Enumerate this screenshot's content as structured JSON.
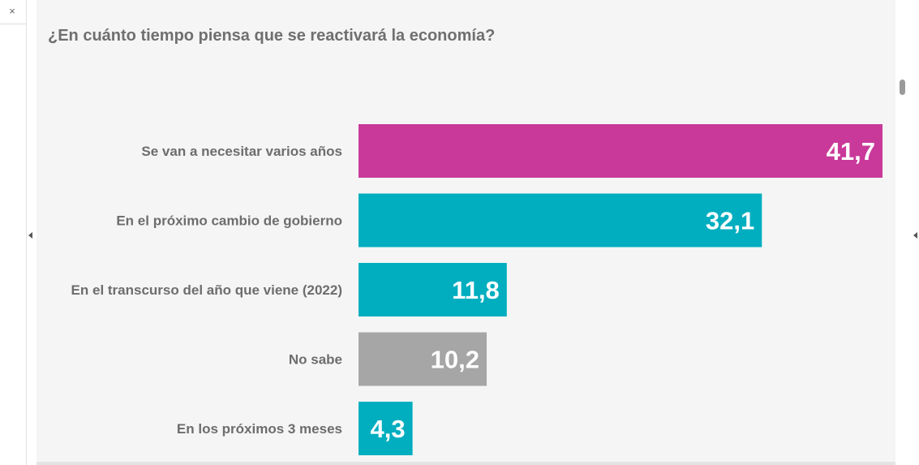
{
  "window": {
    "close_glyph": "×"
  },
  "title": "¿En cuánto tiempo piensa que se reactivará la economía?",
  "colors": {
    "magenta": "#c9399a",
    "teal": "#00aec0",
    "gray": "#a6a6a6"
  },
  "chart_data": {
    "type": "bar",
    "orientation": "horizontal",
    "title": "¿En cuánto tiempo piensa que se reactivará la economía?",
    "categories": [
      "Se van a necesitar varios años",
      "En el próximo cambio de gobierno",
      "En el transcurso del año que viene (2022)",
      "No sabe",
      "En los próximos 3 meses"
    ],
    "values": [
      41.7,
      32.1,
      11.8,
      10.2,
      4.3
    ],
    "value_labels": [
      "41,7",
      "32,1",
      "11,8",
      "10,2",
      "4,3"
    ],
    "bar_colors": [
      "#c9399a",
      "#00aec0",
      "#00aec0",
      "#a6a6a6",
      "#00aec0"
    ],
    "xlim": [
      0,
      41.7
    ],
    "grid": false,
    "legend": "none"
  }
}
